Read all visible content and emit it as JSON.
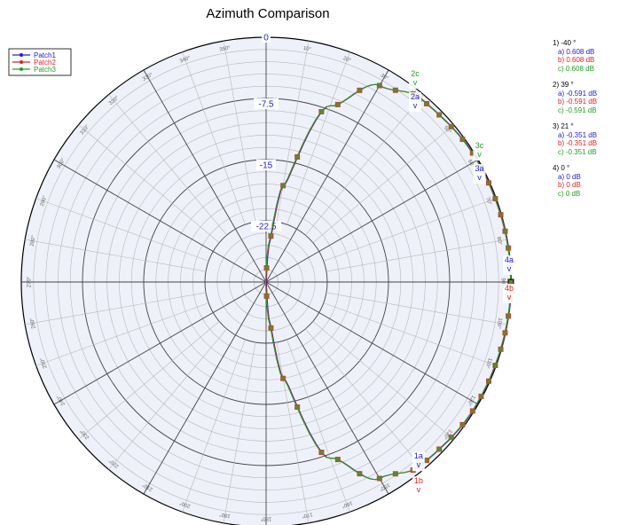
{
  "chart_data": {
    "type": "polar-line",
    "title": "Azimuth Comparison",
    "angle_zero": "top",
    "angle_direction": "clockwise",
    "radial_labels": [
      "0",
      "-7.5",
      "-15",
      "-22.5"
    ],
    "angle_ticks": [
      "0°",
      "10°",
      "20°",
      "30°",
      "40°",
      "50°",
      "60°",
      "70°",
      "80°",
      "90°",
      "100°",
      "110°",
      "120°",
      "130°",
      "140°",
      "150°",
      "160°",
      "170°",
      "180°",
      "190°",
      "200°",
      "210°",
      "220°",
      "230°",
      "240°",
      "250°",
      "260°",
      "270°",
      "280°",
      "290°",
      "300°",
      "310°",
      "320°",
      "330°",
      "340°",
      "350°"
    ],
    "legend_position": "top-left",
    "legend": [
      "Patch1",
      "Patch2",
      "Patch3"
    ],
    "series": [
      {
        "name": "Patch1",
        "color": "#2020d0"
      },
      {
        "name": "Patch2",
        "color": "#e02020"
      },
      {
        "name": "Patch3",
        "color": "#20a020"
      }
    ],
    "pattern_points": [
      {
        "angle": 0,
        "db": -30
      },
      {
        "angle": 5,
        "db": -25
      },
      {
        "angle": 10,
        "db": -18
      },
      {
        "angle": 20,
        "db": -7
      },
      {
        "angle": 30,
        "db": -2.2
      },
      {
        "angle": 40,
        "db": -0.6
      },
      {
        "angle": 60,
        "db": -0.15
      },
      {
        "angle": 90,
        "db": 0
      },
      {
        "angle": 120,
        "db": -0.15
      },
      {
        "angle": 140,
        "db": -0.6
      },
      {
        "angle": 150,
        "db": -2.2
      },
      {
        "angle": 160,
        "db": -7
      },
      {
        "angle": 170,
        "db": -18
      },
      {
        "angle": 175,
        "db": -25
      },
      {
        "angle": 180,
        "db": -30
      }
    ],
    "markers": [
      {
        "id": "1",
        "angle": "-40 °",
        "values": [
          "a) 0.608 dB",
          "b) 0.608 dB",
          "c) 0.608 dB"
        ],
        "tags": [
          "1a",
          "1b"
        ]
      },
      {
        "id": "2",
        "angle": "39 °",
        "values": [
          "a) -0.591 dB",
          "b) -0.591 dB",
          "c) -0.591 dB"
        ],
        "tags": [
          "2c",
          "2a"
        ]
      },
      {
        "id": "3",
        "angle": "21 °",
        "values": [
          "a) -0.351 dB",
          "b) -0.351 dB",
          "c) -0.351 dB"
        ],
        "tags": [
          "3c",
          "3a"
        ]
      },
      {
        "id": "4",
        "angle": "0 °",
        "values": [
          "a) 0 dB",
          "b) 0 dB",
          "c) 0 dB"
        ],
        "tags": [
          "4a",
          "4b"
        ]
      }
    ],
    "marker_arrow": "v"
  }
}
